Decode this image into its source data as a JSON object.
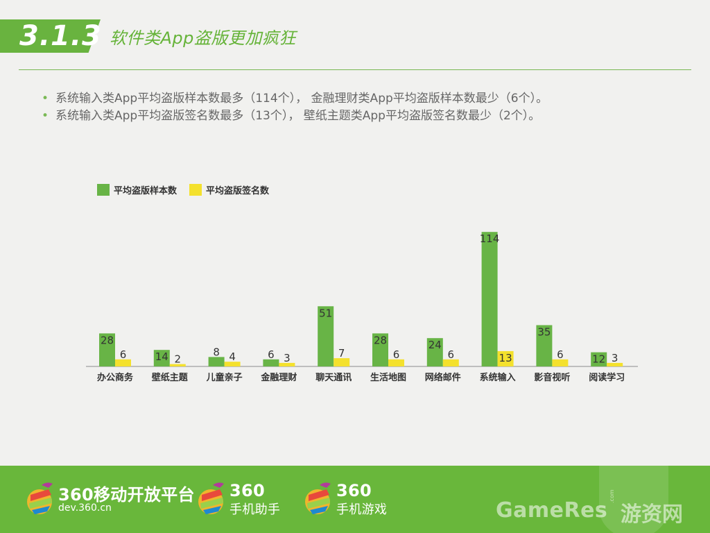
{
  "header": {
    "section_number": "3.1.3",
    "title": "软件类App盗版更加疯狂"
  },
  "bullets": [
    "系统输入类App平均盗版样本数最多（114个），  金融理财类App平均盗版样本数最少（6个）。",
    "系统输入类App平均盗版签名数最多（13个），  壁纸主题类App平均盗版签名数最少（2个）。"
  ],
  "legend": {
    "samples": "平均盗版样本数",
    "signatures": "平均盗版签名数"
  },
  "chart_data": {
    "type": "bar",
    "categories": [
      "办公商务",
      "壁纸主题",
      "儿童亲子",
      "金融理财",
      "聊天通讯",
      "生活地图",
      "网络邮件",
      "系统输入",
      "影音视听",
      "阅读学习"
    ],
    "series": [
      {
        "name": "平均盗版样本数",
        "values": [
          28,
          14,
          8,
          6,
          51,
          28,
          24,
          114,
          35,
          12
        ],
        "color": "#68b446"
      },
      {
        "name": "平均盗版签名数",
        "values": [
          6,
          2,
          4,
          3,
          7,
          6,
          6,
          13,
          6,
          3
        ],
        "color": "#f4e12d"
      }
    ],
    "xlabel": "",
    "ylabel": "",
    "ylim": [
      0,
      120
    ],
    "grid": false,
    "legend_position": "top-left"
  },
  "footer": {
    "brand1_name": "360移动开放平台",
    "brand1_domain": "dev.360.cn",
    "brand2_name": "360",
    "brand2_sub": "手机助手",
    "brand3_name": "360",
    "brand3_sub": "手机游戏",
    "watermark": "GameRes",
    "watermark_cn": "游资网",
    "watermark_dotcom": ".com"
  },
  "colors": {
    "accent_green": "#69b33f",
    "footer_green": "#69b73b",
    "bar_green": "#68b446",
    "bar_yellow": "#f4e12d"
  }
}
